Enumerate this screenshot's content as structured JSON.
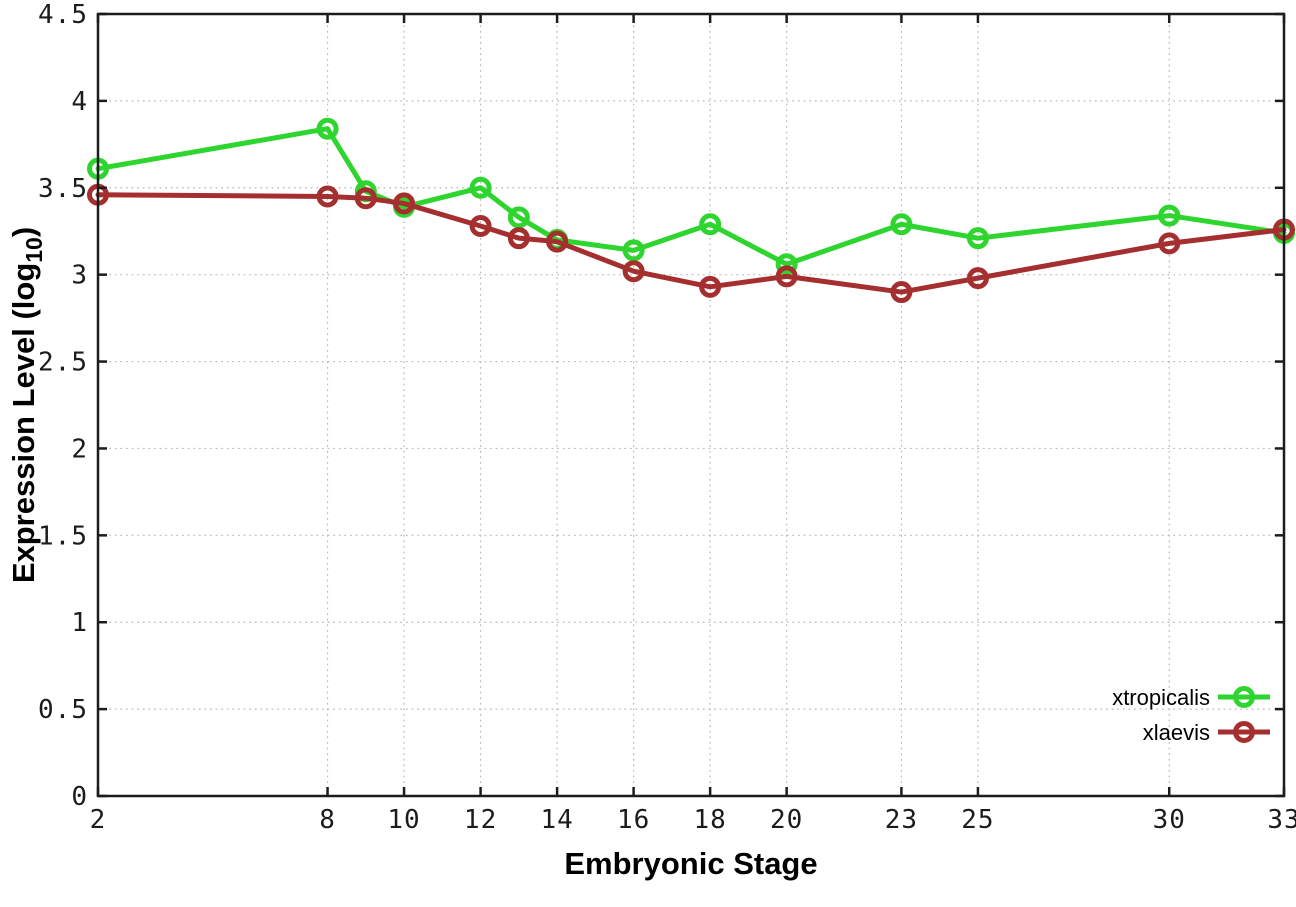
{
  "chart_data": {
    "type": "line",
    "title": "",
    "xlabel": "Embryonic Stage",
    "ylabel": {
      "prefix": "Expression Level (log",
      "sub": "10",
      "suffix": ")"
    },
    "x": [
      2,
      8,
      9,
      10,
      12,
      13,
      14,
      16,
      18,
      20,
      23,
      25,
      30,
      33
    ],
    "series": [
      {
        "name": "xtropicalis",
        "color": "#2ed52e",
        "marker": "open-circle",
        "values": [
          3.61,
          3.84,
          3.48,
          3.39,
          3.5,
          3.33,
          3.2,
          3.14,
          3.29,
          3.06,
          3.29,
          3.21,
          3.34,
          3.24
        ]
      },
      {
        "name": "xlaevis",
        "color": "#a52f2f",
        "marker": "open-circle",
        "values": [
          3.46,
          3.45,
          3.44,
          3.41,
          3.28,
          3.21,
          3.19,
          3.02,
          2.93,
          2.99,
          2.9,
          2.98,
          3.18,
          3.26
        ]
      }
    ],
    "xlim": [
      2,
      33
    ],
    "ylim": [
      0,
      4.5
    ],
    "xticks": {
      "values": [
        2,
        8,
        10,
        12,
        14,
        16,
        18,
        20,
        23,
        25,
        30,
        33
      ],
      "labels": [
        "2",
        "8",
        "10",
        "12",
        "14",
        "16",
        "18",
        "20",
        "23",
        "25",
        "30",
        "33"
      ]
    },
    "yticks": {
      "values": [
        0,
        0.5,
        1,
        1.5,
        2,
        2.5,
        3,
        3.5,
        4,
        4.5
      ],
      "labels": [
        "0",
        "0.5",
        "1",
        "1.5",
        "2",
        "2.5",
        "3",
        "3.5",
        "4",
        "4.5"
      ]
    },
    "grid": true,
    "legend": {
      "position": "right-lower",
      "entries": [
        "xtropicalis",
        "xlaevis"
      ]
    }
  },
  "colors": {
    "background": "#ffffff",
    "grid": "#bbbbbb",
    "axis": "#1c1c1c",
    "text": "#1c1c1c"
  }
}
